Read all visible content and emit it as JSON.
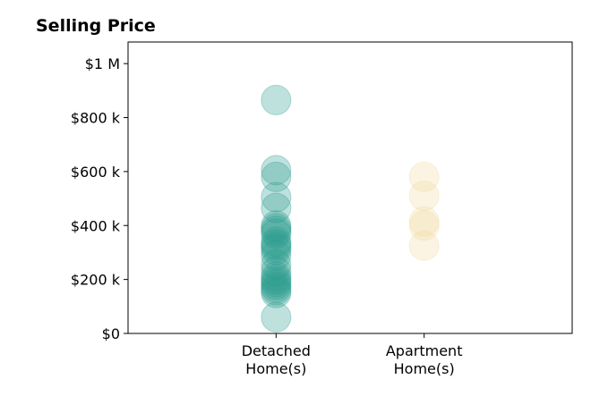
{
  "chart_data": {
    "type": "scatter",
    "title": "Selling Price",
    "xlabel": "",
    "ylabel": "",
    "categories": [
      [
        "Detached",
        "Home(s)"
      ],
      [
        "Apartment",
        "Home(s)"
      ]
    ],
    "yticks": [
      {
        "value": 0,
        "label": "$0"
      },
      {
        "value": 200000,
        "label": "$200 k"
      },
      {
        "value": 400000,
        "label": "$400 k"
      },
      {
        "value": 600000,
        "label": "$600 k"
      },
      {
        "value": 800000,
        "label": "$800 k"
      },
      {
        "value": 1000000,
        "label": "$1 M"
      }
    ],
    "ylim": [
      0,
      1080000
    ],
    "xlim": [
      -1,
      2
    ],
    "grid": false,
    "series": [
      {
        "category_index": 0,
        "color": "#2a9d8f",
        "values": [
          865000,
          605000,
          580000,
          505000,
          465000,
          400000,
          390000,
          380000,
          370000,
          340000,
          330000,
          320000,
          310000,
          290000,
          255000,
          230000,
          210000,
          200000,
          190000,
          180000,
          170000,
          160000,
          150000,
          60000
        ]
      },
      {
        "category_index": 1,
        "color": "#f1d9a2",
        "values": [
          580000,
          510000,
          415000,
          400000,
          325000
        ]
      }
    ]
  }
}
